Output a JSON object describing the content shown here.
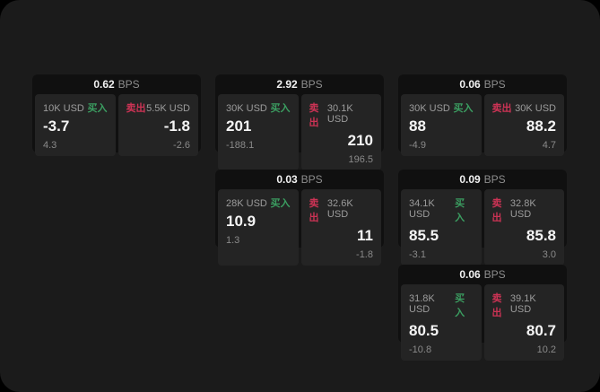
{
  "theme": {
    "page_background": "#000000",
    "window_background": "#1b1b1b",
    "card_background": "#101010",
    "panel_background": "#242424",
    "text_primary": "#f5f5f5",
    "text_muted": "#8e8e8e",
    "buy_green": "#3b9e61",
    "sell_red": "#cc3355"
  },
  "cards": [
    {
      "bps_value": "0.62",
      "bps_unit": "BPS",
      "grid": {
        "col": 1,
        "row": 1
      },
      "buy": {
        "amount": "10K USD",
        "side_label": "买入",
        "price": "-3.7",
        "delta": "4.3"
      },
      "sell": {
        "side_label": "卖出",
        "amount": "5.5K USD",
        "price": "-1.8",
        "delta": "-2.6"
      }
    },
    {
      "bps_value": "2.92",
      "bps_unit": "BPS",
      "grid": {
        "col": 2,
        "row": 1
      },
      "buy": {
        "amount": "30K USD",
        "side_label": "买入",
        "price": "201",
        "delta": "-188.1"
      },
      "sell": {
        "side_label": "卖出",
        "amount": "30.1K USD",
        "price": "210",
        "delta": "196.5"
      }
    },
    {
      "bps_value": "0.06",
      "bps_unit": "BPS",
      "grid": {
        "col": 3,
        "row": 1
      },
      "buy": {
        "amount": "30K USD",
        "side_label": "买入",
        "price": "88",
        "delta": "-4.9"
      },
      "sell": {
        "side_label": "卖出",
        "amount": "30K USD",
        "price": "88.2",
        "delta": "4.7"
      }
    },
    {
      "bps_value": "0.03",
      "bps_unit": "BPS",
      "grid": {
        "col": 2,
        "row": 2
      },
      "buy": {
        "amount": "28K USD",
        "side_label": "买入",
        "price": "10.9",
        "delta": "1.3"
      },
      "sell": {
        "side_label": "卖出",
        "amount": "32.6K USD",
        "price": "11",
        "delta": "-1.8"
      }
    },
    {
      "bps_value": "0.09",
      "bps_unit": "BPS",
      "grid": {
        "col": 3,
        "row": 2
      },
      "buy": {
        "amount": "34.1K USD",
        "side_label": "买入",
        "price": "85.5",
        "delta": "-3.1"
      },
      "sell": {
        "side_label": "卖出",
        "amount": "32.8K USD",
        "price": "85.8",
        "delta": "3.0"
      }
    },
    {
      "bps_value": "0.06",
      "bps_unit": "BPS",
      "grid": {
        "col": 3,
        "row": 3
      },
      "buy": {
        "amount": "31.8K USD",
        "side_label": "买入",
        "price": "80.5",
        "delta": "-10.8"
      },
      "sell": {
        "side_label": "卖出",
        "amount": "39.1K USD",
        "price": "80.7",
        "delta": "10.2"
      }
    }
  ]
}
